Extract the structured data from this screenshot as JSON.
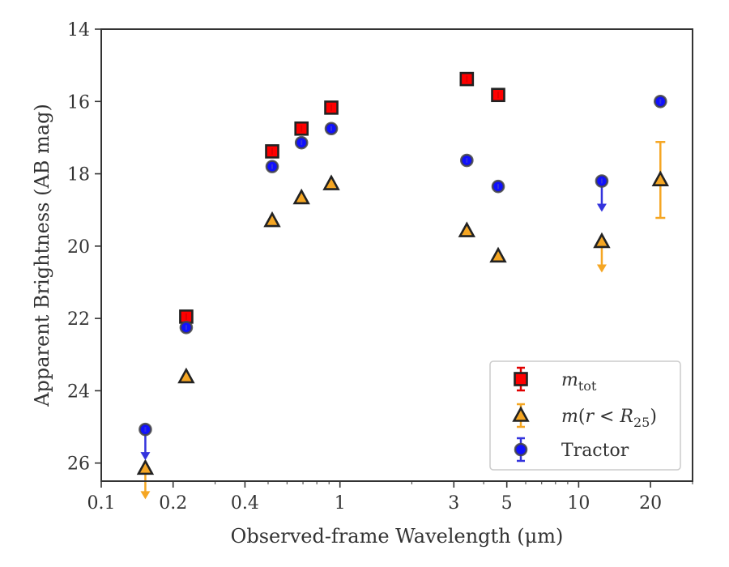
{
  "chart_data": {
    "type": "scatter",
    "xscale": "log",
    "yaxis_inverted": true,
    "xlim": [
      0.1,
      30
    ],
    "ylim": [
      26.5,
      14
    ],
    "xlabel": "Observed-frame Wavelength (μm)",
    "ylabel": "Apparent Brightness (AB mag)",
    "x_ticks": [
      0.1,
      0.2,
      0.4,
      1,
      3,
      5,
      10,
      20
    ],
    "x_tick_labels": [
      "0.1",
      "0.2",
      "0.4",
      "1",
      "3",
      "5",
      "10",
      "20"
    ],
    "y_ticks": [
      14,
      16,
      18,
      20,
      22,
      24,
      26
    ],
    "y_tick_labels": [
      "14",
      "16",
      "18",
      "20",
      "22",
      "24",
      "26"
    ],
    "legend_position": "lower-right",
    "grid": false,
    "series": [
      {
        "name": "m_tot",
        "legend_html": "m<tspan baseline-shift=\"sub\" font-size=\"16\">tot</tspan>",
        "marker": "square",
        "fill": "#ff0000",
        "edge": "#222222",
        "errcolor": "#e00000",
        "points": [
          {
            "x": 0.227,
            "y": 21.95
          },
          {
            "x": 0.52,
            "y": 17.38
          },
          {
            "x": 0.69,
            "y": 16.75
          },
          {
            "x": 0.92,
            "y": 16.17
          },
          {
            "x": 3.4,
            "y": 15.38
          },
          {
            "x": 4.6,
            "y": 15.82
          }
        ]
      },
      {
        "name": "m(r < R25)",
        "marker": "triangle",
        "fill": "#f5a623",
        "edge": "#222222",
        "errcolor": "#f5a623",
        "points": [
          {
            "x": 0.153,
            "y": 26.15,
            "upper_limit": true
          },
          {
            "x": 0.227,
            "y": 23.62
          },
          {
            "x": 0.52,
            "y": 19.3
          },
          {
            "x": 0.69,
            "y": 18.67
          },
          {
            "x": 0.92,
            "y": 18.28
          },
          {
            "x": 3.4,
            "y": 19.58
          },
          {
            "x": 4.6,
            "y": 20.28
          },
          {
            "x": 12.5,
            "y": 19.88,
            "upper_limit": true
          },
          {
            "x": 22.0,
            "y": 18.17,
            "err": 1.05
          }
        ]
      },
      {
        "name": "Tractor",
        "marker": "circle",
        "fill": "#1010ff",
        "edge": "#444444",
        "errcolor": "#3333dd",
        "points": [
          {
            "x": 0.153,
            "y": 25.07,
            "upper_limit": true
          },
          {
            "x": 0.227,
            "y": 22.25
          },
          {
            "x": 0.52,
            "y": 17.8
          },
          {
            "x": 0.69,
            "y": 17.14
          },
          {
            "x": 0.92,
            "y": 16.75
          },
          {
            "x": 3.4,
            "y": 17.63
          },
          {
            "x": 4.6,
            "y": 18.35
          },
          {
            "x": 12.5,
            "y": 18.2,
            "upper_limit": true
          },
          {
            "x": 22.0,
            "y": 16.0
          }
        ]
      }
    ]
  }
}
